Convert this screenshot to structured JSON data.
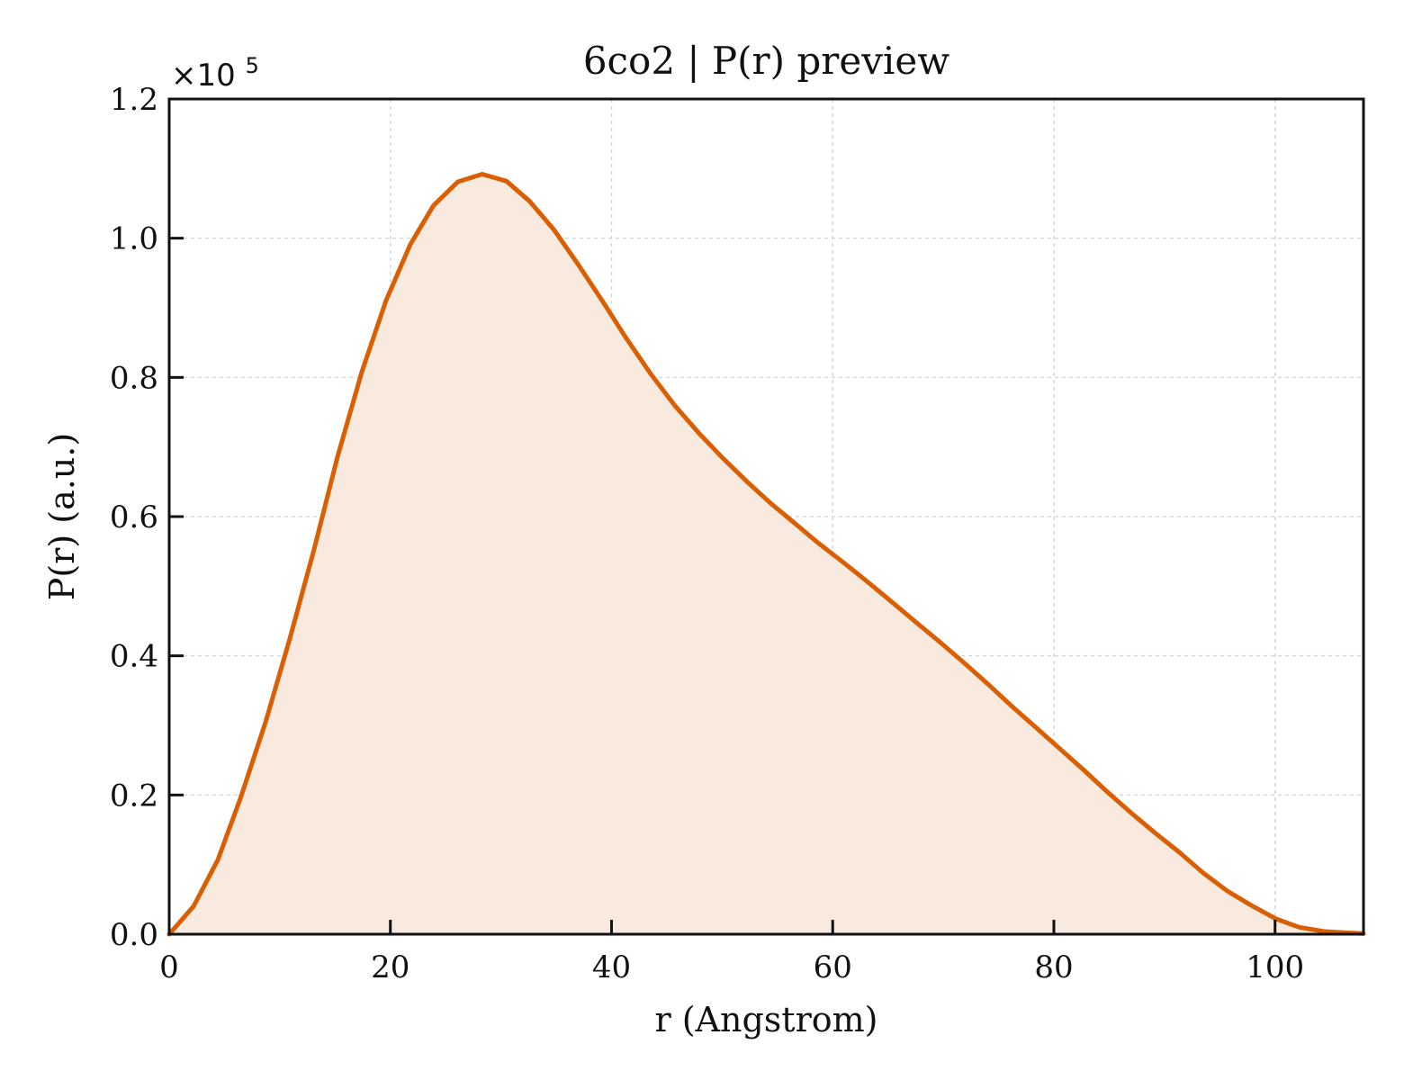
{
  "chart_data": {
    "type": "area",
    "title": "6co2 | P(r) preview",
    "xlabel": "r (Angstrom)",
    "ylabel": "P(r) (a.u.)",
    "y_scale_label": "×10",
    "y_scale_exponent": "5",
    "xlim": [
      0,
      108
    ],
    "ylim": [
      0,
      1.2
    ],
    "x_ticks": [
      0,
      20,
      40,
      60,
      80,
      100
    ],
    "y_ticks": [
      0.0,
      0.2,
      0.4,
      0.6,
      0.8,
      1.0,
      1.2
    ],
    "x_tick_labels": [
      "0",
      "20",
      "40",
      "60",
      "80",
      "100"
    ],
    "y_tick_labels": [
      "0.0",
      "0.2",
      "0.4",
      "0.6",
      "0.8",
      "1.0",
      "1.2"
    ],
    "grid": true,
    "line_color": "#d95f02",
    "fill_color": "#f8eadf",
    "series": [
      {
        "x": [
          0,
          2.2,
          4.4,
          6.5,
          8.7,
          10.9,
          13.1,
          15.2,
          17.4,
          19.6,
          21.8,
          23.9,
          26.1,
          28.3,
          30.5,
          32.6,
          34.8,
          37.0,
          39.2,
          41.3,
          43.5,
          45.7,
          47.9,
          50.0,
          52.2,
          54.4,
          56.6,
          58.7,
          60.9,
          63.1,
          65.3,
          67.4,
          69.6,
          71.8,
          74.0,
          76.1,
          78.3,
          80.5,
          82.7,
          84.8,
          87.0,
          89.2,
          91.4,
          93.5,
          95.7,
          97.9,
          100.1,
          102.2,
          104.4,
          106.6,
          108.0
        ],
        "values": [
          0.0,
          0.04,
          0.107,
          0.198,
          0.304,
          0.424,
          0.553,
          0.685,
          0.807,
          0.91,
          0.991,
          1.047,
          1.081,
          1.092,
          1.082,
          1.053,
          1.012,
          0.962,
          0.909,
          0.857,
          0.806,
          0.76,
          0.72,
          0.685,
          0.651,
          0.619,
          0.59,
          0.562,
          0.535,
          0.507,
          0.478,
          0.45,
          0.421,
          0.391,
          0.36,
          0.329,
          0.298,
          0.267,
          0.236,
          0.205,
          0.174,
          0.145,
          0.117,
          0.088,
          0.062,
          0.041,
          0.022,
          0.01,
          0.004,
          0.002,
          0.001
        ]
      }
    ]
  }
}
